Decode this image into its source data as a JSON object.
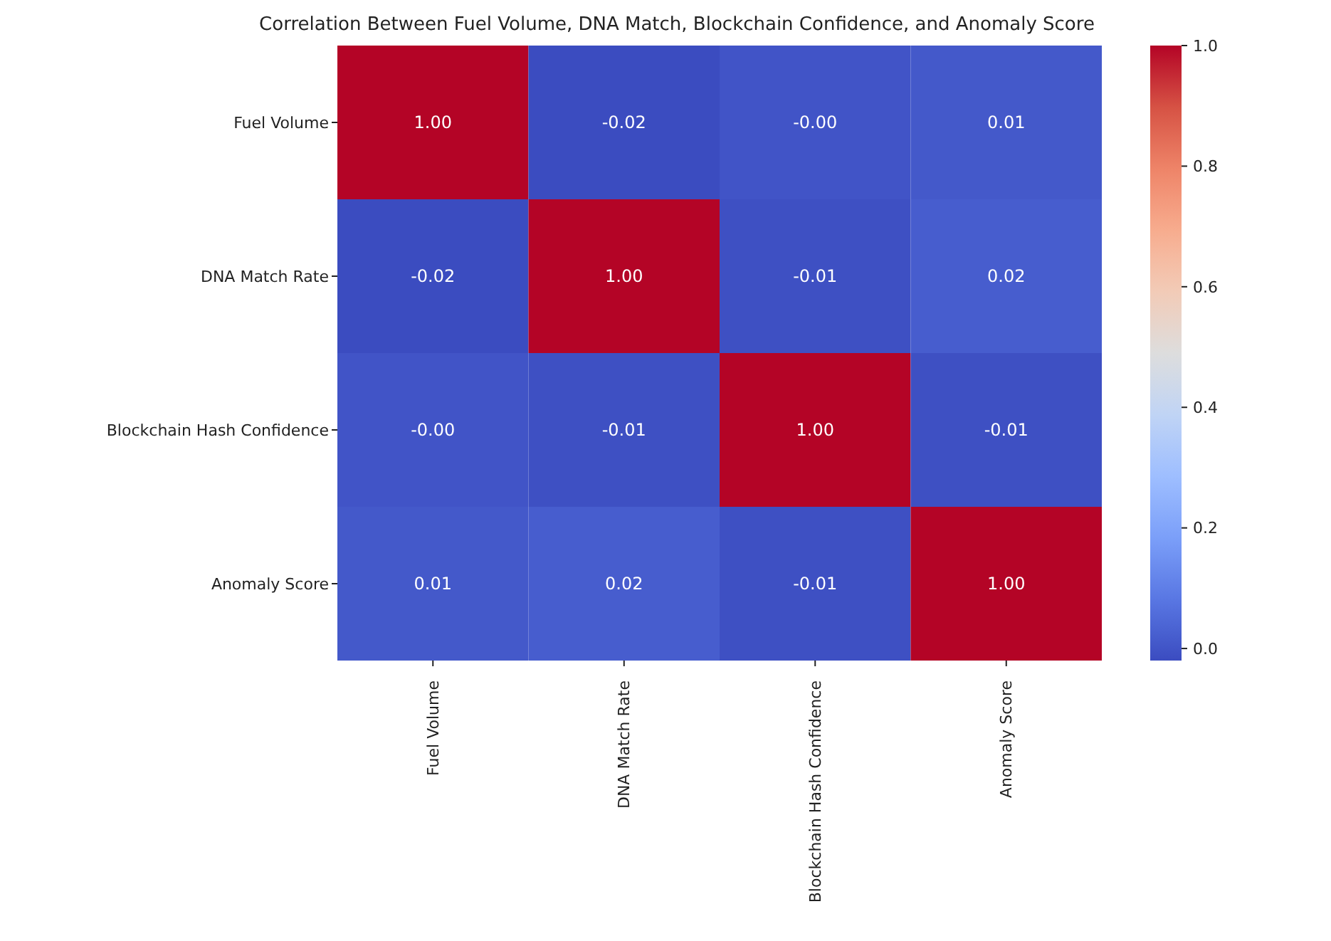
{
  "chart_data": {
    "type": "heatmap",
    "title": "Correlation Between Fuel Volume, DNA Match, Blockchain Confidence, and Anomaly Score",
    "categories": [
      "Fuel Volume",
      "DNA Match Rate",
      "Blockchain Hash Confidence",
      "Anomaly Score"
    ],
    "y_categories": [
      "Fuel Volume",
      "DNA Match Rate",
      "Blockchain Hash Confidence",
      "Anomaly Score"
    ],
    "cells": [
      [
        1.0,
        -0.02,
        -0.0,
        0.01
      ],
      [
        -0.02,
        1.0,
        -0.01,
        0.02
      ],
      [
        -0.0,
        -0.01,
        1.0,
        -0.01
      ],
      [
        0.01,
        0.02,
        -0.01,
        1.0
      ]
    ],
    "cell_labels": [
      [
        "1.00",
        "-0.02",
        "-0.00",
        "0.01"
      ],
      [
        "-0.02",
        "1.00",
        "-0.01",
        "0.02"
      ],
      [
        "-0.00",
        "-0.01",
        "1.00",
        "-0.01"
      ],
      [
        "0.01",
        "0.02",
        "-0.01",
        "1.00"
      ]
    ],
    "clim": [
      -0.02,
      1.0
    ],
    "cticks": [
      {
        "value": 0,
        "label": "0.0"
      },
      {
        "value": 0.2,
        "label": "0.2"
      },
      {
        "value": 0.4,
        "label": "0.4"
      },
      {
        "value": 0.6,
        "label": "0.6"
      },
      {
        "value": 0.8,
        "label": "0.8"
      },
      {
        "value": 1.0,
        "label": "1.0"
      }
    ]
  }
}
